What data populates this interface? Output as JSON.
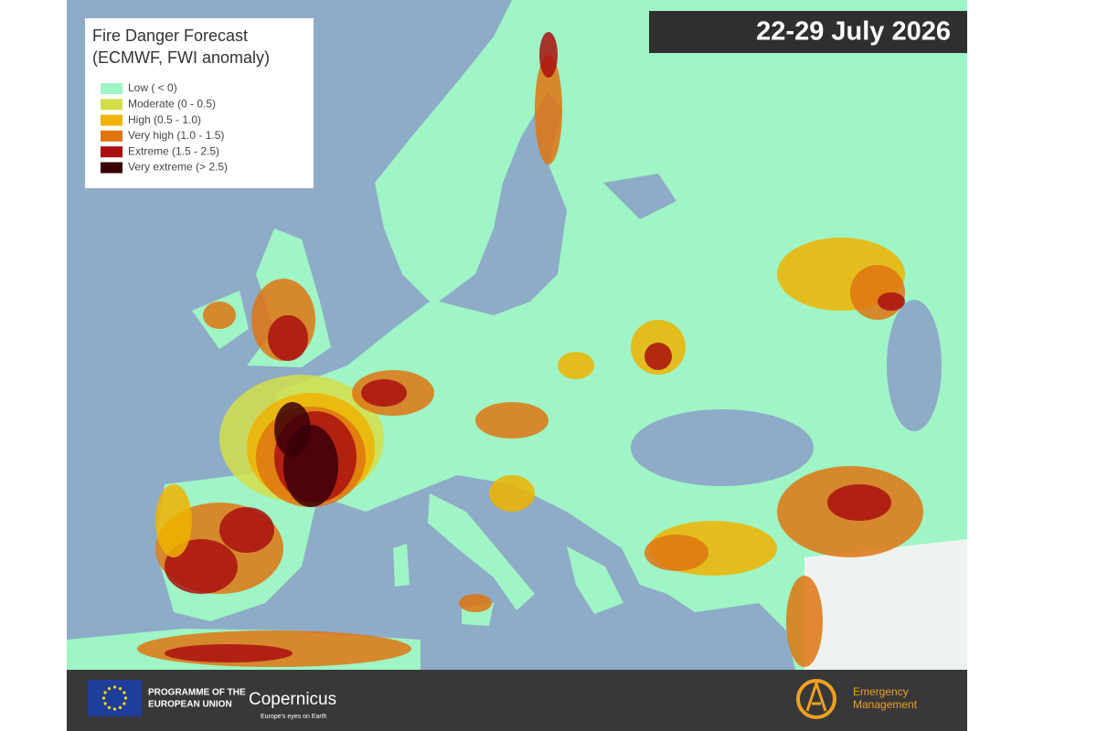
{
  "header": {
    "title": "Fire Danger Forecast",
    "subtitle": "(ECMWF, FWI anomaly)",
    "date": "22-29 July 2026"
  },
  "legend": {
    "items": [
      {
        "label": "Low ( < 0)",
        "color": "#9ff5c5"
      },
      {
        "label": "Moderate (0 - 0.5)",
        "color": "#d4de4a"
      },
      {
        "label": "High (0.5 - 1.0)",
        "color": "#efb300"
      },
      {
        "label": "Very high (1.0 - 1.5)",
        "color": "#df7411"
      },
      {
        "label": "Extreme (1.5 - 2.5)",
        "color": "#a90f10"
      },
      {
        "label": "Very extreme (> 2.5)",
        "color": "#3a0008"
      }
    ]
  },
  "footer": {
    "eu": [
      "PROGRAMME OF THE",
      "EUROPEAN UNION"
    ],
    "copernicus": "Copernicus",
    "copernicus_tagline": "Europe's eyes on Earth",
    "emergency": [
      "Emergency",
      "Management"
    ]
  }
}
